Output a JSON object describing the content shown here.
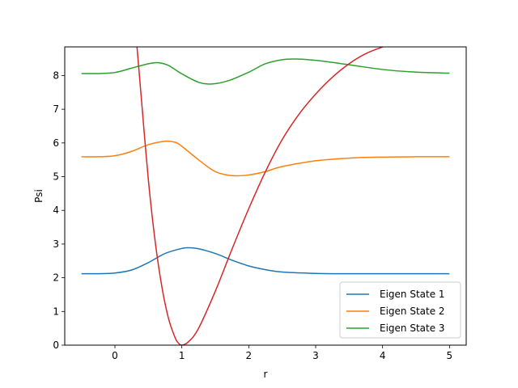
{
  "chart_data": {
    "type": "line",
    "title": "",
    "xlabel": "r",
    "ylabel": "Psi",
    "xlim": [
      -0.75,
      5.25
    ],
    "ylim": [
      0,
      8.85
    ],
    "xticks": [
      0,
      1,
      2,
      3,
      4,
      5
    ],
    "xtick_labels": [
      "0",
      "1",
      "2",
      "3",
      "4",
      "5"
    ],
    "yticks": [
      0,
      1,
      2,
      3,
      4,
      5,
      6,
      7,
      8
    ],
    "ytick_labels": [
      "0",
      "1",
      "2",
      "3",
      "4",
      "5",
      "6",
      "7",
      "8"
    ],
    "grid": false,
    "legend_location": "lower-right",
    "series": [
      {
        "name": "Eigen State 1",
        "color": "#1f77b4",
        "x": [
          -0.5,
          -0.25,
          0.0,
          0.25,
          0.5,
          0.75,
          1.0,
          1.1,
          1.25,
          1.5,
          1.75,
          2.0,
          2.25,
          2.5,
          3.0,
          3.5,
          4.0,
          4.5,
          5.0
        ],
        "y": [
          2.12,
          2.12,
          2.14,
          2.23,
          2.45,
          2.72,
          2.87,
          2.89,
          2.86,
          2.72,
          2.52,
          2.35,
          2.24,
          2.17,
          2.13,
          2.12,
          2.12,
          2.12,
          2.12
        ]
      },
      {
        "name": "Eigen State 2",
        "color": "#ff7f0e",
        "x": [
          -0.5,
          -0.25,
          0.0,
          0.25,
          0.5,
          0.75,
          0.9,
          1.0,
          1.25,
          1.5,
          1.75,
          2.0,
          2.25,
          2.5,
          3.0,
          3.5,
          4.0,
          4.5,
          5.0
        ],
        "y": [
          5.59,
          5.59,
          5.62,
          5.75,
          5.95,
          6.05,
          6.02,
          5.9,
          5.5,
          5.15,
          5.03,
          5.05,
          5.15,
          5.3,
          5.47,
          5.55,
          5.58,
          5.59,
          5.59
        ]
      },
      {
        "name": "Eigen State 3",
        "color": "#2ca02c",
        "x": [
          -0.5,
          -0.25,
          0.0,
          0.25,
          0.5,
          0.65,
          0.8,
          1.0,
          1.25,
          1.45,
          1.7,
          2.0,
          2.25,
          2.5,
          2.7,
          3.0,
          3.5,
          4.0,
          4.5,
          5.0
        ],
        "y": [
          8.06,
          8.06,
          8.09,
          8.22,
          8.35,
          8.38,
          8.3,
          8.05,
          7.8,
          7.75,
          7.85,
          8.1,
          8.35,
          8.47,
          8.49,
          8.45,
          8.32,
          8.18,
          8.1,
          8.07
        ]
      },
      {
        "name": "",
        "color": "#d62728",
        "x": [
          0.33,
          0.4,
          0.5,
          0.6,
          0.7,
          0.8,
          0.9,
          0.95,
          1.0,
          1.1,
          1.25,
          1.5,
          1.75,
          2.0,
          2.25,
          2.5,
          2.75,
          3.0,
          3.25,
          3.5,
          3.75,
          4.0,
          4.05
        ],
        "y": [
          8.85,
          7.2,
          4.9,
          3.1,
          1.75,
          0.8,
          0.22,
          0.06,
          0.0,
          0.1,
          0.5,
          1.6,
          2.85,
          4.05,
          5.15,
          6.1,
          6.85,
          7.45,
          7.95,
          8.35,
          8.65,
          8.85,
          8.9
        ]
      }
    ]
  }
}
